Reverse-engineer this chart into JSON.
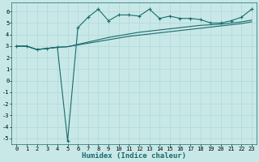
{
  "title": "",
  "xlabel": "Humidex (Indice chaleur)",
  "ylabel": "",
  "background_color": "#c8e8e8",
  "line_color": "#1a6b6b",
  "xlim": [
    -0.5,
    23.5
  ],
  "ylim": [
    -5.5,
    6.8
  ],
  "yticks": [
    -5,
    -4,
    -3,
    -2,
    -1,
    0,
    1,
    2,
    3,
    4,
    5,
    6
  ],
  "xticks": [
    0,
    1,
    2,
    3,
    4,
    5,
    6,
    7,
    8,
    9,
    10,
    11,
    12,
    13,
    14,
    15,
    16,
    17,
    18,
    19,
    20,
    21,
    22,
    23
  ],
  "grid_color": "#b0d8d8",
  "line1_x": [
    0,
    1,
    2,
    3,
    4,
    5,
    6,
    7,
    8,
    9,
    10,
    11,
    12,
    13,
    14,
    15,
    16,
    17,
    18,
    19,
    20,
    21,
    22,
    23
  ],
  "line1_y": [
    3.0,
    3.0,
    2.7,
    2.8,
    2.9,
    -5.2,
    4.6,
    5.5,
    6.2,
    5.2,
    5.7,
    5.7,
    5.6,
    6.2,
    5.4,
    5.6,
    5.4,
    5.4,
    5.3,
    5.0,
    5.0,
    5.2,
    5.5,
    6.2
  ],
  "line2_x": [
    0,
    1,
    2,
    3,
    4,
    5,
    6,
    7,
    8,
    9,
    10,
    11,
    12,
    13,
    14,
    15,
    16,
    17,
    18,
    19,
    20,
    21,
    22,
    23
  ],
  "line2_y": [
    3.0,
    3.0,
    2.7,
    2.8,
    2.9,
    2.95,
    3.15,
    3.35,
    3.55,
    3.75,
    3.9,
    4.05,
    4.2,
    4.3,
    4.4,
    4.5,
    4.6,
    4.7,
    4.8,
    4.85,
    4.9,
    5.0,
    5.1,
    5.25
  ],
  "line3_x": [
    0,
    1,
    2,
    3,
    4,
    5,
    6,
    7,
    8,
    9,
    10,
    11,
    12,
    13,
    14,
    15,
    16,
    17,
    18,
    19,
    20,
    21,
    22,
    23
  ],
  "line3_y": [
    3.0,
    3.0,
    2.7,
    2.8,
    2.9,
    2.95,
    3.1,
    3.25,
    3.4,
    3.55,
    3.7,
    3.85,
    3.95,
    4.05,
    4.15,
    4.25,
    4.35,
    4.45,
    4.55,
    4.65,
    4.75,
    4.85,
    4.95,
    5.1
  ],
  "fontsize_ticks": 5,
  "fontsize_label": 6.5
}
